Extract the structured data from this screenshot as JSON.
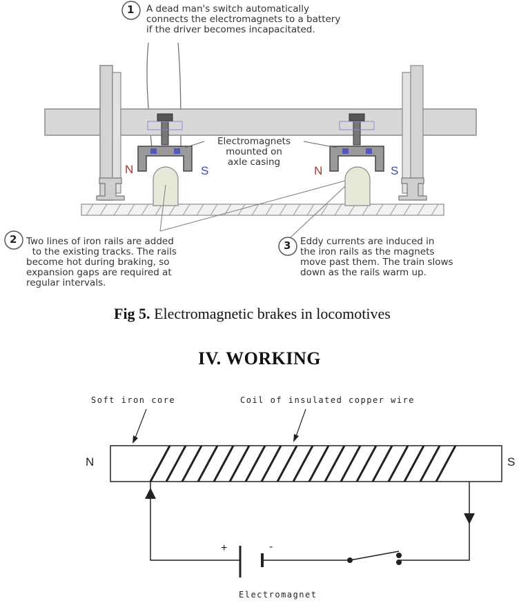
{
  "figure5": {
    "callouts": [
      {
        "number": "1",
        "text": "A dead man's switch automatically\nconnects the electromagnets to a battery\nif the driver becomes incapacitated."
      },
      {
        "number": "2",
        "text": "Two lines of iron rails are added\n  to the existing tracks. The rails\nbecome hot during braking, so\nexpansion gaps are required at\nregular intervals."
      },
      {
        "number": "3",
        "text": "Eddy currents are induced in\nthe iron rails as the magnets\nmove past them. The train slows\ndown as the rails warm up."
      }
    ],
    "center_label": "Electromagnets\nmounted on\naxle casing",
    "poles": {
      "north": "N",
      "south": "S"
    },
    "caption_bold": "Fig 5.",
    "caption_text": " Electromagnetic brakes in locomotives"
  },
  "section_heading": "IV. WORKING",
  "figure_circuit": {
    "core_label": "Soft iron core",
    "coil_label": "Coil of insulated copper wire",
    "pole_north": "N",
    "pole_south": "S",
    "battery_plus": "+",
    "battery_minus": "-",
    "caption": "Electromagnet"
  }
}
